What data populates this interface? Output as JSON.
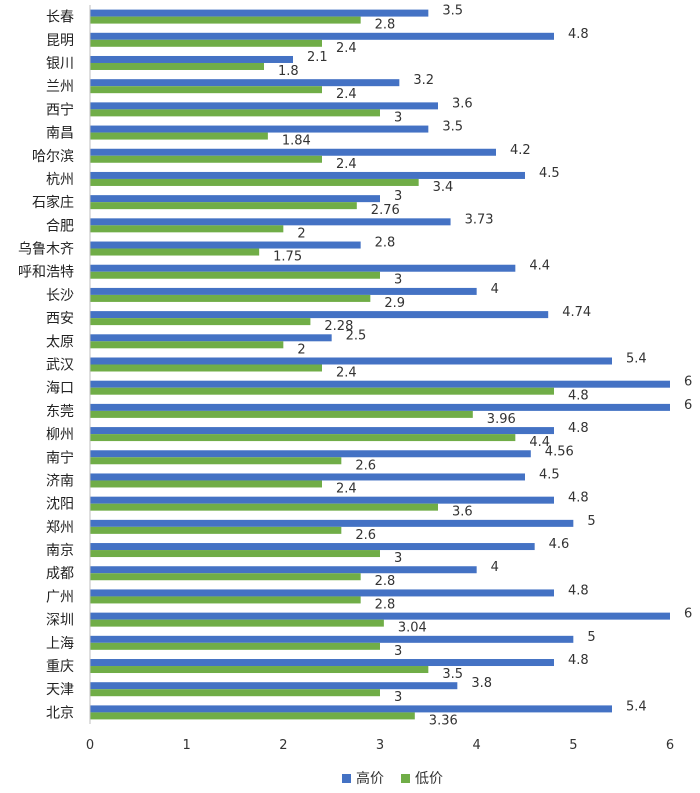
{
  "chart_data": {
    "type": "bar",
    "orientation": "horizontal",
    "categories": [
      "长春",
      "昆明",
      "银川",
      "兰州",
      "西宁",
      "南昌",
      "哈尔滨",
      "杭州",
      "石家庄",
      "合肥",
      "乌鲁木齐",
      "呼和浩特",
      "长沙",
      "西安",
      "太原",
      "武汉",
      "海口",
      "东莞",
      "柳州",
      "南宁",
      "济南",
      "沈阳",
      "郑州",
      "南京",
      "成都",
      "广州",
      "深圳",
      "上海",
      "重庆",
      "天津",
      "北京"
    ],
    "series": [
      {
        "name": "高价",
        "color": "#4472C4",
        "values": [
          3.5,
          4.8,
          2.1,
          3.2,
          3.6,
          3.5,
          4.2,
          4.5,
          3,
          3.73,
          2.8,
          4.4,
          4,
          4.74,
          2.5,
          5.4,
          6,
          6,
          4.8,
          4.56,
          4.5,
          4.8,
          5,
          4.6,
          4,
          4.8,
          6,
          5,
          4.8,
          3.8,
          5.4
        ]
      },
      {
        "name": "低价",
        "color": "#70AD47",
        "values": [
          2.8,
          2.4,
          1.8,
          2.4,
          3,
          1.84,
          2.4,
          3.4,
          2.76,
          2,
          1.75,
          3,
          2.9,
          2.28,
          2,
          2.4,
          4.8,
          3.96,
          4.4,
          2.6,
          2.4,
          3.6,
          2.6,
          3,
          2.8,
          2.8,
          3.04,
          3,
          3.5,
          3,
          3.36
        ]
      }
    ],
    "xlim": [
      0,
      6
    ],
    "xticks": [
      "0",
      "1",
      "2",
      "3",
      "4",
      "5",
      "6"
    ],
    "grid": false,
    "legend_position": "bottom"
  }
}
